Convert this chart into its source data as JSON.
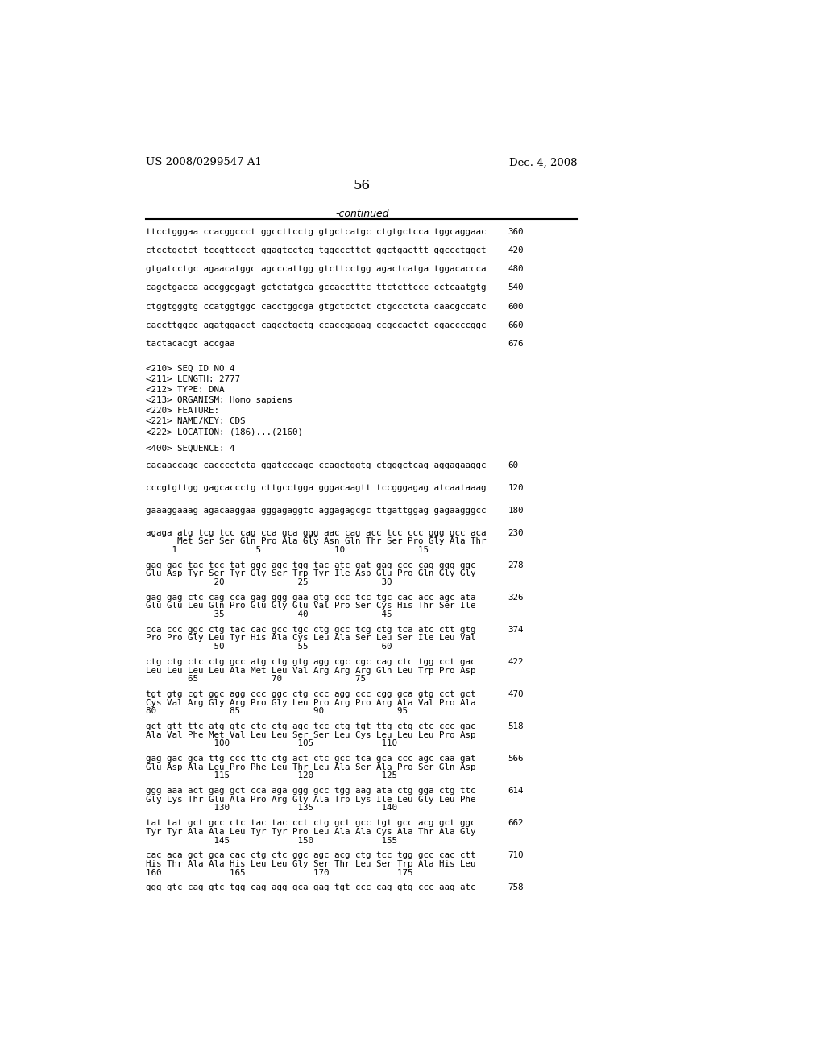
{
  "header_left": "US 2008/0299547 A1",
  "header_right": "Dec. 4, 2008",
  "page_number": "56",
  "continued_label": "-continued",
  "background_color": "#ffffff",
  "text_color": "#000000",
  "lines": [
    {
      "text": "ttcctgggaa ccacggccct ggccttcctg gtgctcatgc ctgtgctcca tggcaggaac",
      "num": "360"
    },
    {
      "text": "ctcctgctct tccgttccct ggagtcctcg tggcccttct ggctgacttt ggccctggct",
      "num": "420"
    },
    {
      "text": "gtgatcctgc agaacatggc agcccattgg gtcttcctgg agactcatga tggacaccca",
      "num": "480"
    },
    {
      "text": "cagctgacca accggcgagt gctctatgca gccacctttc ttctcttccc cctcaatgtg",
      "num": "540"
    },
    {
      "text": "ctggtgggtg ccatggtggc cacctggcga gtgctcctct ctgccctcta caacgccatc",
      "num": "600"
    },
    {
      "text": "caccttggcc agatggacct cagcctgctg ccaccgagag ccgccactct cgaccccggc",
      "num": "660"
    },
    {
      "text": "tactacacgt accgaa",
      "num": "676"
    }
  ],
  "metadata": [
    "<210> SEQ ID NO 4",
    "<211> LENGTH: 2777",
    "<212> TYPE: DNA",
    "<213> ORGANISM: Homo sapiens",
    "<220> FEATURE:",
    "<221> NAME/KEY: CDS",
    "<222> LOCATION: (186)...(2160)"
  ],
  "seq_label": "<400> SEQUENCE: 4",
  "coding_blocks": [
    {
      "dna": "cacaaccagc cacccctcta ggatcccagc ccagctggtg ctgggctcag aggagaaggc",
      "num": "60",
      "aa": null,
      "positions": null
    },
    {
      "dna": "cccgtgttgg gagcaccctg cttgcctgga gggacaagtt tccgggagag atcaataaag",
      "num": "120",
      "aa": null,
      "positions": null
    },
    {
      "dna": "gaaaggaaag agacaaggaa gggagaggtc aggagagcgc ttgattggag gagaagggcc",
      "num": "180",
      "aa": null,
      "positions": null
    },
    {
      "dna": "agaga atg tcg tcc cag cca gca ggg aac cag acc tcc ccc ggg gcc aca",
      "num": "230",
      "aa": "      Met Ser Ser Gln Pro Ala Gly Asn Gln Thr Ser Pro Gly Ala Thr",
      "positions": "     1               5              10              15"
    },
    {
      "dna": "gag gac tac tcc tat ggc agc tgg tac atc gat gag ccc cag ggg ggc",
      "num": "278",
      "aa": "Glu Asp Tyr Ser Tyr Gly Ser Trp Tyr Ile Asp Glu Pro Gln Gly Gly",
      "positions": "             20              25              30"
    },
    {
      "dna": "gag gag ctc cag cca gag ggg gaa gtg ccc tcc tgc cac acc agc ata",
      "num": "326",
      "aa": "Glu Glu Leu Gln Pro Glu Gly Glu Val Pro Ser Cys His Thr Ser Ile",
      "positions": "             35              40              45"
    },
    {
      "dna": "cca ccc ggc ctg tac cac gcc tgc ctg gcc tcg ctg tca atc ctt gtg",
      "num": "374",
      "aa": "Pro Pro Gly Leu Tyr His Ala Cys Leu Ala Ser Leu Ser Ile Leu Val",
      "positions": "             50              55              60"
    },
    {
      "dna": "ctg ctg ctc ctg gcc atg ctg gtg agg cgc cgc cag ctc tgg cct gac",
      "num": "422",
      "aa": "Leu Leu Leu Leu Ala Met Leu Val Arg Arg Arg Gln Leu Trp Pro Asp",
      "positions": "        65              70              75"
    },
    {
      "dna": "tgt gtg cgt ggc agg ccc ggc ctg ccc agg ccc cgg gca gtg cct gct",
      "num": "470",
      "aa": "Cys Val Arg Gly Arg Pro Gly Leu Pro Arg Pro Arg Ala Val Pro Ala",
      "positions": "80              85              90              95"
    },
    {
      "dna": "gct gtt ttc atg gtc ctc ctg agc tcc ctg tgt ttg ctg ctc ccc gac",
      "num": "518",
      "aa": "Ala Val Phe Met Val Leu Leu Ser Ser Leu Cys Leu Leu Leu Pro Asp",
      "positions": "             100             105             110"
    },
    {
      "dna": "gag gac gca ttg ccc ttc ctg act ctc gcc tca gca ccc agc caa gat",
      "num": "566",
      "aa": "Glu Asp Ala Leu Pro Phe Leu Thr Leu Ala Ser Ala Pro Ser Gln Asp",
      "positions": "             115             120             125"
    },
    {
      "dna": "ggg aaa act gag gct cca aga ggg gcc tgg aag ata ctg gga ctg ttc",
      "num": "614",
      "aa": "Gly Lys Thr Glu Ala Pro Arg Gly Ala Trp Lys Ile Leu Gly Leu Phe",
      "positions": "             130             135             140"
    },
    {
      "dna": "tat tat gct gcc ctc tac tac cct ctg gct gcc tgt gcc acg gct ggc",
      "num": "662",
      "aa": "Tyr Tyr Ala Ala Leu Tyr Tyr Pro Leu Ala Ala Cys Ala Thr Ala Gly",
      "positions": "             145             150             155"
    },
    {
      "dna": "cac aca gct gca cac ctg ctc ggc agc acg ctg tcc tgg gcc cac ctt",
      "num": "710",
      "aa": "His Thr Ala Ala His Leu Leu Gly Ser Thr Leu Ser Trp Ala His Leu",
      "positions": "160             165             170             175"
    },
    {
      "dna": "ggg gtc cag gtc tgg cag agg gca gag tgt ccc cag gtg ccc aag atc",
      "num": "758",
      "aa": null,
      "positions": null
    }
  ]
}
